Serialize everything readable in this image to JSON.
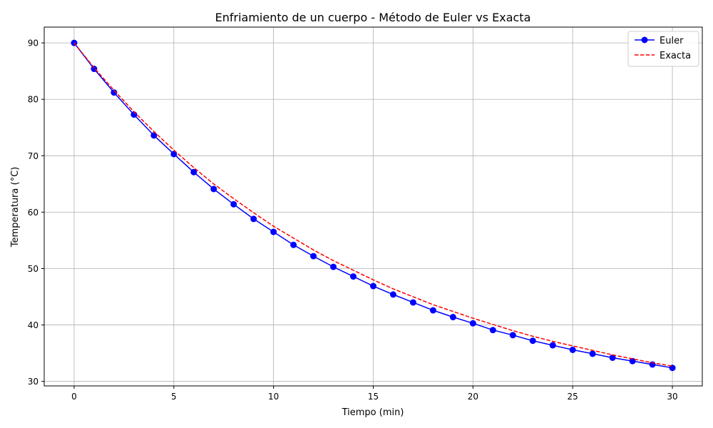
{
  "chart_data": {
    "type": "line",
    "title": "Enfriamiento de un cuerpo - Método de Euler vs Exacta",
    "xlabel": "Tiempo (min)",
    "ylabel": "Temperatura (°C)",
    "xlim": [
      -1.5,
      31.5
    ],
    "ylim": [
      29.2,
      92.8
    ],
    "xticks": [
      0,
      5,
      10,
      15,
      20,
      25,
      30
    ],
    "yticks": [
      30,
      40,
      50,
      60,
      70,
      80,
      90
    ],
    "grid": true,
    "legend_position": "top-right",
    "x": [
      0,
      1,
      2,
      3,
      4,
      5,
      6,
      7,
      8,
      9,
      10,
      11,
      12,
      13,
      14,
      15,
      16,
      17,
      18,
      19,
      20,
      21,
      22,
      23,
      24,
      25,
      26,
      27,
      28,
      29,
      30
    ],
    "series": [
      {
        "name": "Euler",
        "style": "solid-with-markers",
        "color": "#0000ff",
        "values": [
          90.0,
          85.4,
          81.2,
          77.3,
          73.6,
          70.3,
          67.1,
          64.1,
          61.4,
          58.8,
          56.5,
          54.2,
          52.2,
          50.3,
          48.6,
          46.9,
          45.4,
          44.0,
          42.6,
          41.4,
          40.3,
          39.1,
          38.2,
          37.2,
          36.4,
          35.6,
          34.9,
          34.2,
          33.6,
          33.0,
          32.4
        ]
      },
      {
        "name": "Exacta",
        "style": "dashed",
        "color": "#ff0000",
        "values": [
          90.0,
          85.6,
          81.6,
          77.8,
          74.3,
          71.0,
          67.9,
          65.0,
          62.4,
          59.9,
          57.5,
          55.4,
          53.3,
          51.4,
          49.7,
          48.0,
          46.4,
          45.0,
          43.6,
          42.4,
          41.2,
          40.1,
          39.0,
          38.0,
          37.1,
          36.3,
          35.5,
          34.7,
          34.0,
          33.3,
          32.7
        ]
      }
    ]
  }
}
